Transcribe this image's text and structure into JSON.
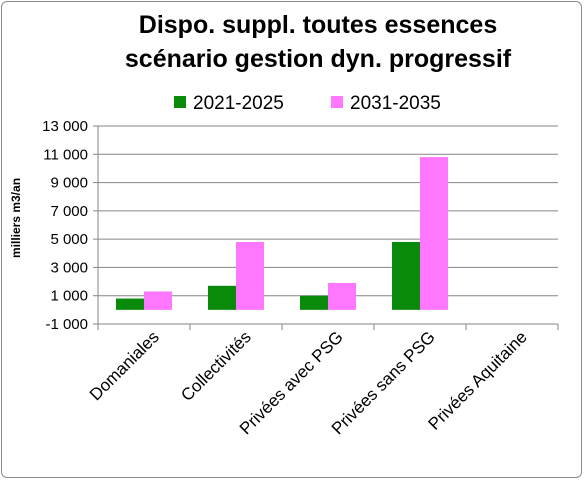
{
  "chart_data": {
    "type": "bar",
    "title_lines": [
      "Dispo. suppl. toutes essences",
      "scénario gestion dyn. progressif"
    ],
    "ylabel": "milliers m3/an",
    "xlabel": "",
    "categories": [
      "Domaniales",
      "Collectivités",
      "Privées avec PSG",
      "Privées sans PSG",
      "Privées Aquitaine"
    ],
    "series": [
      {
        "name": "2021-2025",
        "color": "#0a8a0a",
        "values": [
          800,
          1700,
          1000,
          4800,
          0
        ]
      },
      {
        "name": "2031-2035",
        "color": "#ff77ff",
        "values": [
          1300,
          4800,
          1900,
          10800,
          0
        ]
      }
    ],
    "ylim": [
      -1000,
      13000
    ],
    "yticks": [
      13000,
      11000,
      9000,
      7000,
      5000,
      3000,
      1000,
      -1000
    ],
    "ytick_labels": [
      "13 000",
      "11 000",
      "9 000",
      "7 000",
      "5 000",
      "3 000",
      "1 000",
      "-1 000"
    ],
    "grid": true,
    "legend_position": "top"
  }
}
